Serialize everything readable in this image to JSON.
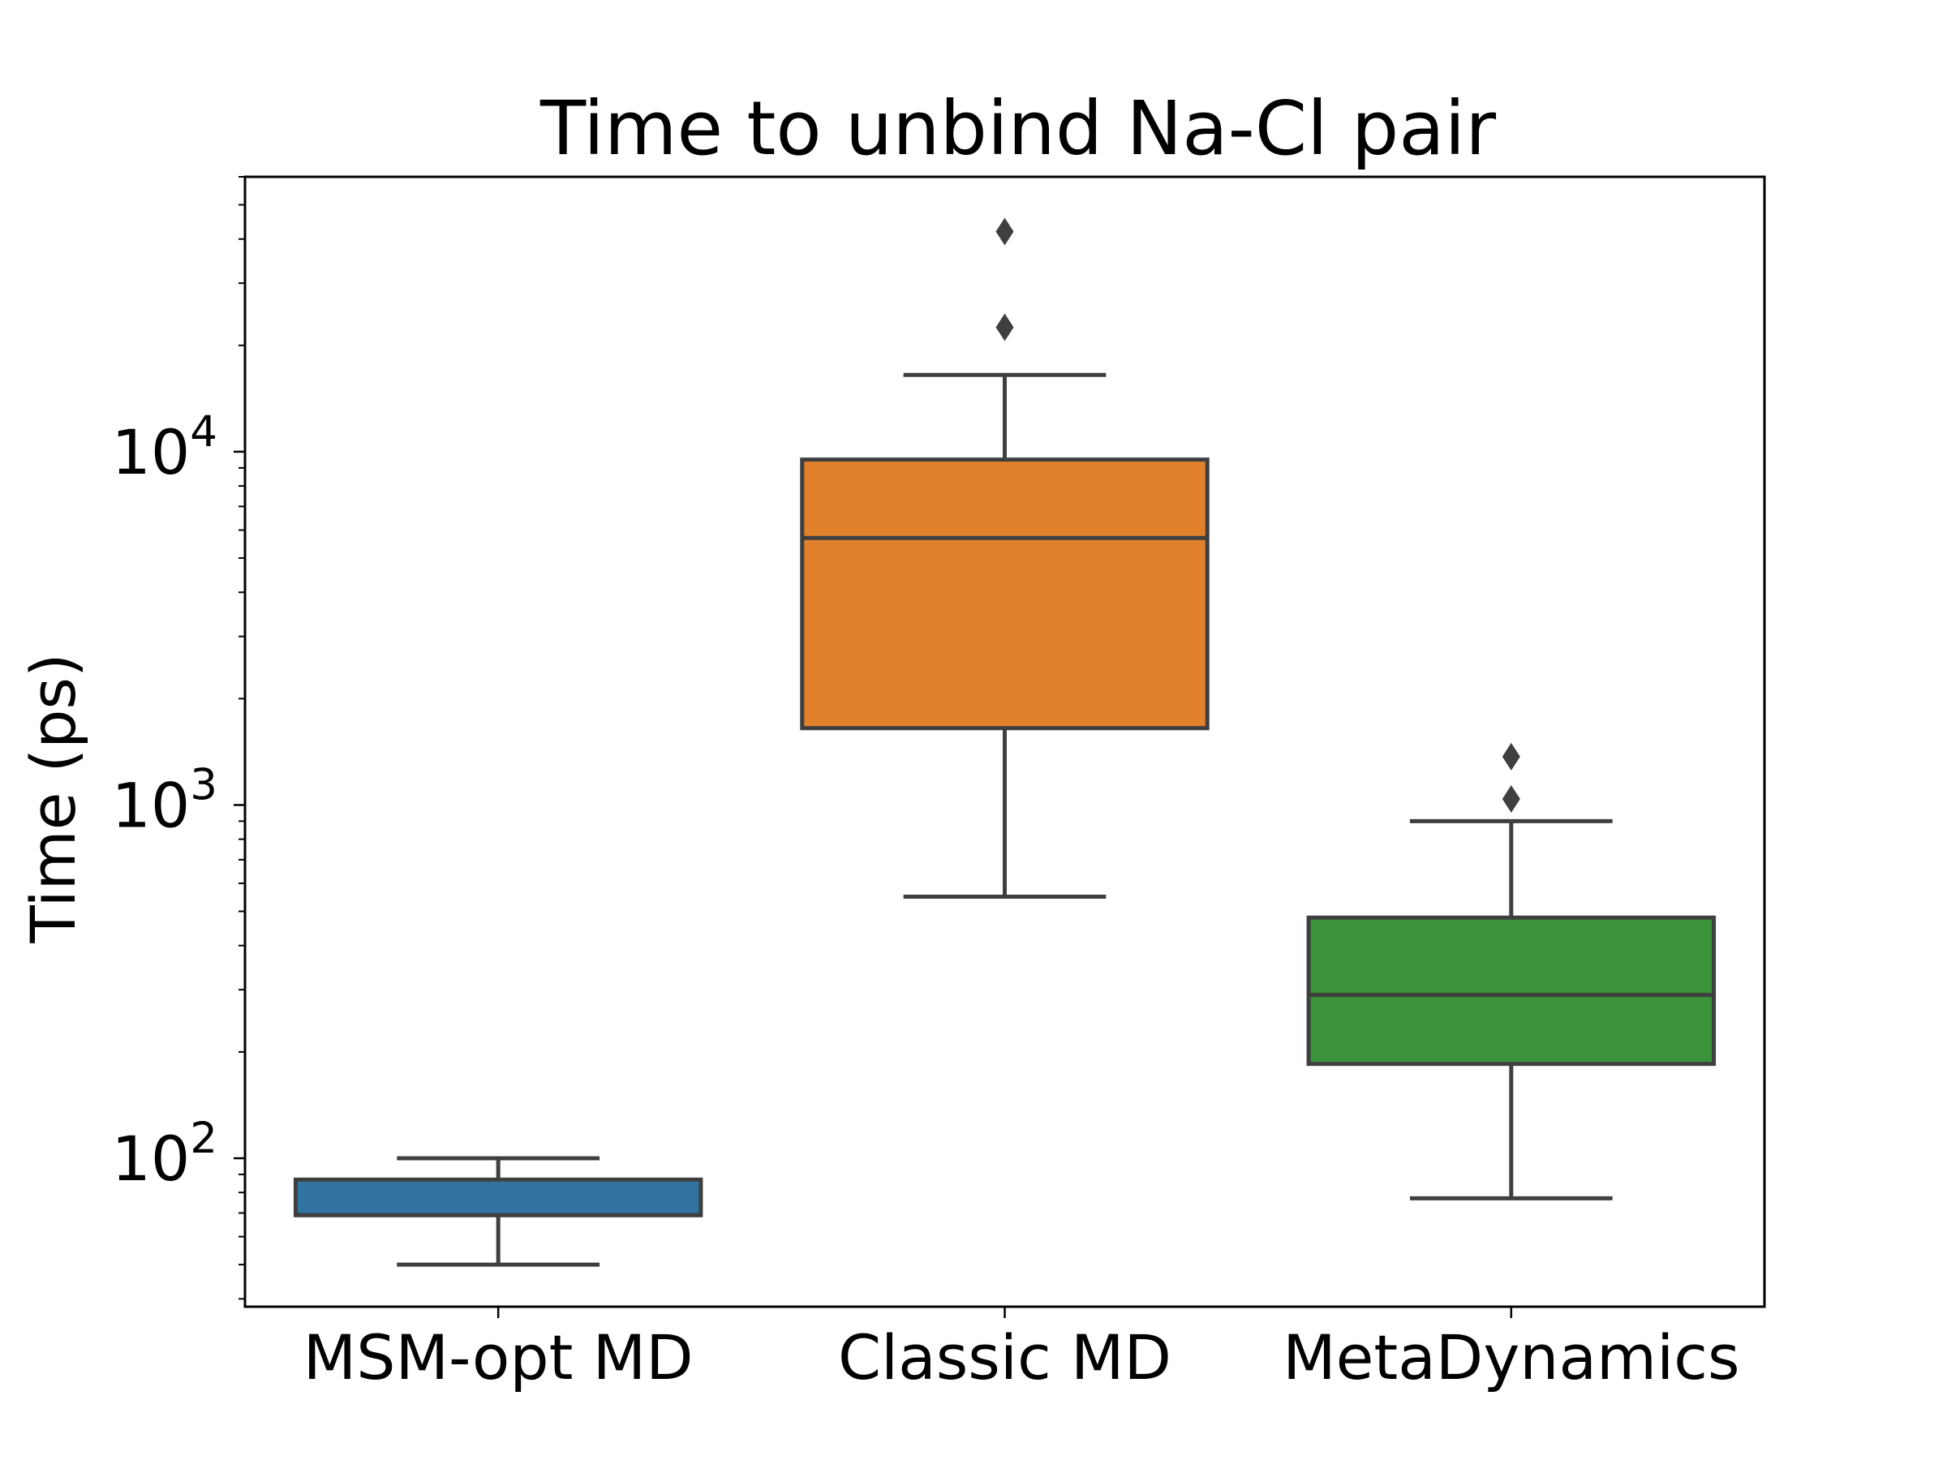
{
  "chart_data": {
    "type": "box",
    "title": "Time to unbind Na-Cl pair",
    "xlabel": "",
    "ylabel": "Time (ps)",
    "yscale": "log",
    "ylim": [
      38,
      60000
    ],
    "yticks": [
      {
        "value": 100,
        "base": "10",
        "exp": "2"
      },
      {
        "value": 1000,
        "base": "10",
        "exp": "3"
      },
      {
        "value": 10000,
        "base": "10",
        "exp": "4"
      }
    ],
    "categories": [
      "MSM-opt MD",
      "Classic MD",
      "MetaDynamics"
    ],
    "boxes": [
      {
        "category": "MSM-opt MD",
        "color": "#3274a1",
        "whisker_low": 50,
        "q1": 69,
        "median": 69,
        "q3": 87,
        "whisker_high": 100,
        "outliers": []
      },
      {
        "category": "Classic MD",
        "color": "#e1812c",
        "whisker_low": 550,
        "q1": 1650,
        "median": 5700,
        "q3": 9500,
        "whisker_high": 16500,
        "outliers": [
          22500,
          42000
        ]
      },
      {
        "category": "MetaDynamics",
        "color": "#3a923a",
        "whisker_low": 77,
        "q1": 185,
        "median": 290,
        "q3": 480,
        "whisker_high": 900,
        "outliers": [
          1040,
          1370
        ]
      }
    ],
    "line_color": "#3f3f3f",
    "grid": false,
    "legend": false
  }
}
